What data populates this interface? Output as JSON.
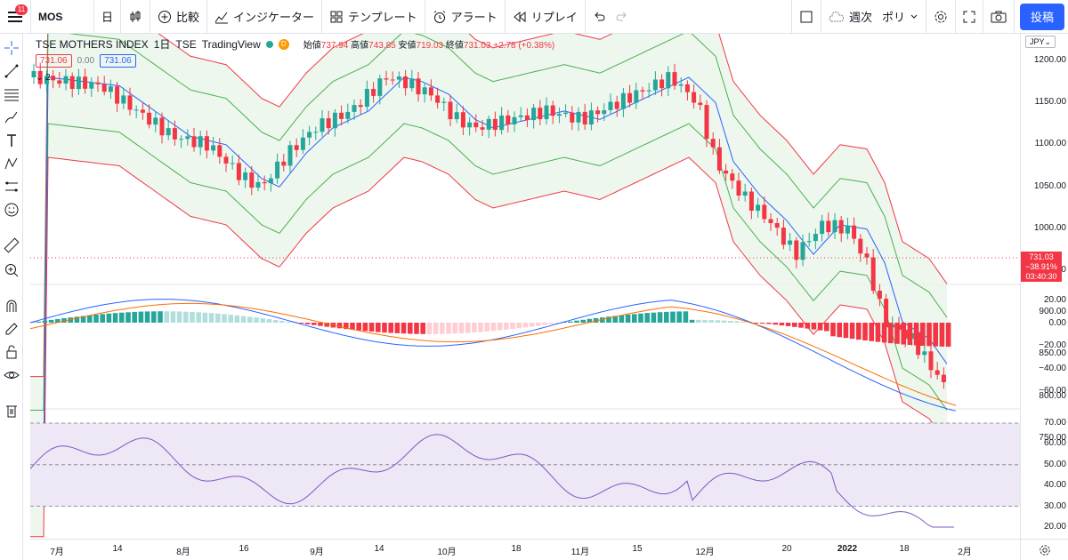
{
  "toolbar": {
    "menu_badge": "11",
    "symbol": "MOS",
    "interval": "日",
    "compare": "比較",
    "indicators": "インジケーター",
    "templates": "テンプレート",
    "alert": "アラート",
    "replay": "リプレイ",
    "week_label": "週次",
    "poly_label": "ポリ",
    "publish": "投稿"
  },
  "legend": {
    "title": "TSE MOTHERS INDEX",
    "interval": "1日",
    "exchange": "TSE",
    "source": "TradingView",
    "d_badge": "D",
    "open_label": "始値",
    "open": "737.94",
    "high_label": "高値",
    "high": "743.85",
    "low_label": "安値",
    "low": "719.03",
    "close_label": "終値",
    "close": "731.03",
    "change": "+2.78 (+0.38%)",
    "ind_chip1": "731.06",
    "ind_val": "0.00",
    "ind_chip2": "731.06",
    "collapse": "2"
  },
  "price_axis": {
    "currency": "JPY",
    "labels": [
      "1200.00",
      "1150.00",
      "1100.00",
      "1050.00",
      "1000.00",
      "950.00",
      "900.00",
      "850.00",
      "800.00",
      "750.00"
    ],
    "current_price": "731.03",
    "current_change": "−38.91%",
    "countdown": "03:40:30"
  },
  "macd_axis": {
    "labels": [
      "20.00",
      "0.00",
      "−20.00",
      "−40.00",
      "−60.00"
    ]
  },
  "rsi_axis": {
    "labels": [
      "70.00",
      "60.00",
      "50.00",
      "40.00",
      "30.00",
      "20.00"
    ]
  },
  "time_axis": {
    "labels": [
      {
        "text": "7月",
        "bold": false
      },
      {
        "text": "14",
        "bold": false
      },
      {
        "text": "8月",
        "bold": false
      },
      {
        "text": "16",
        "bold": false
      },
      {
        "text": "9月",
        "bold": false
      },
      {
        "text": "14",
        "bold": false
      },
      {
        "text": "10月",
        "bold": false
      },
      {
        "text": "18",
        "bold": false
      },
      {
        "text": "11月",
        "bold": false
      },
      {
        "text": "15",
        "bold": false
      },
      {
        "text": "12月",
        "bold": false
      },
      {
        "text": "20",
        "bold": false
      },
      {
        "text": "2022",
        "bold": true
      },
      {
        "text": "18",
        "bold": false
      },
      {
        "text": "2月",
        "bold": false
      }
    ]
  },
  "colors": {
    "up": "#26a69a",
    "down": "#f23645",
    "band_outer": "#f23645",
    "band_mid": "#4caf50",
    "band_center": "#2962ff",
    "band_fill": "#e8f5e9",
    "macd_line": "#2962ff",
    "signal_line": "#ff6d00",
    "rsi_line": "#7e57c2",
    "rsi_fill": "#ede7f6"
  }
}
